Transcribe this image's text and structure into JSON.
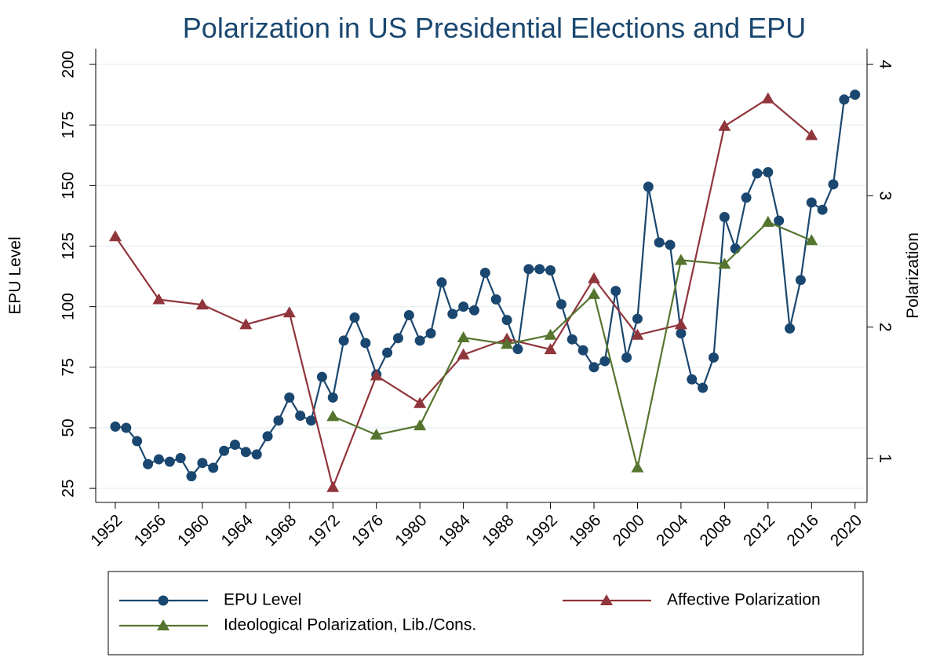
{
  "chart_data": {
    "type": "line",
    "title": "Polarization in US Presidential Elections and EPU",
    "y_label": "EPU Level",
    "y2_label": "Polarization",
    "xlim": [
      1950.2,
      2021.1
    ],
    "xticks": [
      1952,
      1956,
      1960,
      1964,
      1968,
      1972,
      1976,
      1980,
      1984,
      1988,
      1992,
      1996,
      2000,
      2004,
      2008,
      2012,
      2016,
      2020
    ],
    "ylim": [
      19.2,
      206.5
    ],
    "yticks": [
      25,
      50,
      75,
      100,
      125,
      150,
      175,
      200
    ],
    "y2lim": [
      0.665,
      4.12
    ],
    "y2ticks": [
      1,
      2,
      3,
      4
    ],
    "grid": true,
    "series": [
      {
        "name": "EPU Level",
        "color": "#1a476f",
        "marker": "circle",
        "x": [
          1952,
          1953,
          1954,
          1955,
          1956,
          1957,
          1958,
          1959,
          1960,
          1961,
          1962,
          1963,
          1964,
          1965,
          1966,
          1967,
          1968,
          1969,
          1970,
          1971,
          1972,
          1973,
          1974,
          1975,
          1976,
          1977,
          1978,
          1979,
          1980,
          1981,
          1982,
          1983,
          1984,
          1985,
          1986,
          1987,
          1988,
          1989,
          1990,
          1991,
          1992,
          1993,
          1994,
          1995,
          1996,
          1997,
          1998,
          1999,
          2000,
          2001,
          2002,
          2003,
          2004,
          2005,
          2006,
          2007,
          2008,
          2009,
          2010,
          2011,
          2012,
          2013,
          2014,
          2015,
          2016,
          2017,
          2018,
          2019,
          2020
        ],
        "values": [
          50.5,
          50,
          44.5,
          35,
          37,
          36,
          37.5,
          30,
          35.5,
          33.5,
          40.5,
          43,
          40,
          39,
          46.5,
          53,
          62.5,
          55,
          53,
          71,
          62.5,
          86,
          95.5,
          85,
          72,
          81,
          87,
          96.5,
          86,
          89,
          110,
          97,
          100,
          98.5,
          114,
          103,
          94.5,
          82.5,
          115.5,
          115.5,
          115,
          101,
          86.5,
          82,
          75,
          77.5,
          106.5,
          79,
          95,
          149.5,
          126.5,
          125.5,
          89,
          70,
          66.5,
          79,
          137,
          124,
          145,
          155,
          155.5,
          135.5,
          91,
          111,
          143,
          140,
          150.5,
          185.5,
          187.5
        ]
      },
      {
        "name": "Affective Polarization",
        "color": "#90353b",
        "marker": "triangle",
        "axis": "y2",
        "x": [
          1952,
          1956,
          1960,
          1964,
          1968,
          1972,
          1976,
          1980,
          1984,
          1988,
          1992,
          1996,
          2000,
          2004,
          2008,
          2012,
          2016
        ],
        "values": [
          2.69,
          2.21,
          2.17,
          2.02,
          2.11,
          0.78,
          1.63,
          1.42,
          1.79,
          1.91,
          1.83,
          2.37,
          1.94,
          2.02,
          3.53,
          3.74,
          3.46
        ]
      },
      {
        "name": "Ideological Polarization, Lib./Cons.",
        "color": "#55752f",
        "marker": "triangle",
        "axis": "y2",
        "x": [
          1972,
          1976,
          1980,
          1984,
          1988,
          1992,
          1996,
          2000,
          2004,
          2008,
          2012,
          2016
        ],
        "values": [
          1.32,
          1.18,
          1.25,
          1.92,
          1.87,
          1.94,
          2.25,
          0.93,
          2.51,
          2.48,
          2.8,
          2.66
        ]
      }
    ]
  }
}
